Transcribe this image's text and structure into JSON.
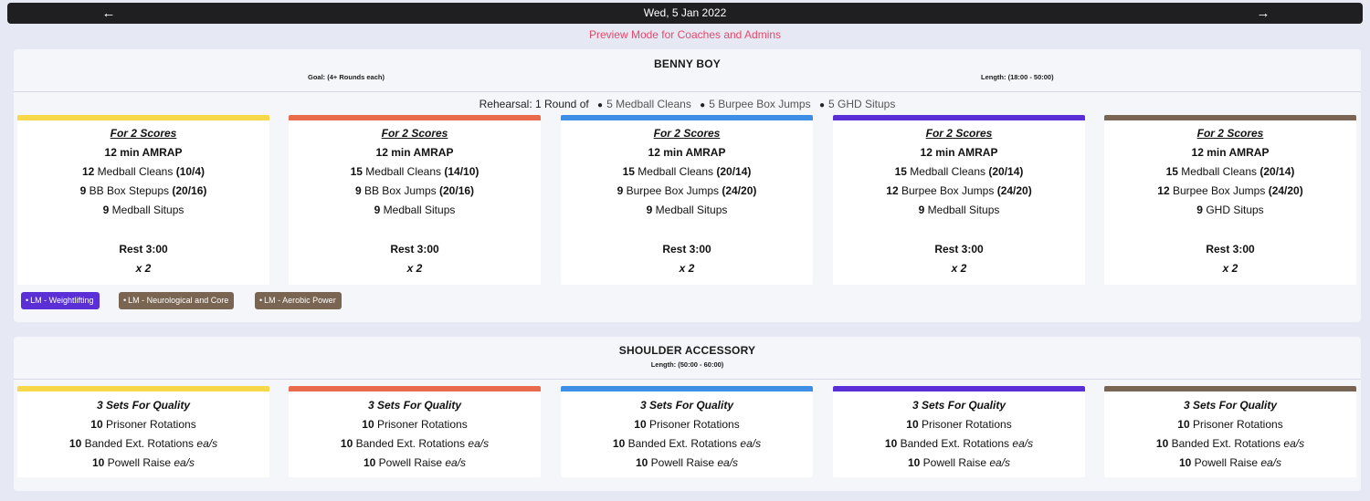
{
  "nav": {
    "date": "Wed, 5 Jan 2022",
    "prev_icon": "←",
    "next_icon": "→"
  },
  "preview_text": "Preview Mode for Coaches and Admins",
  "colors": {
    "yellow": "#f6d84a",
    "orange": "#ea6b4c",
    "blue": "#3f8ee6",
    "purple": "#5a2fd6",
    "brown": "#7a6553",
    "accent": "#e24a6b"
  },
  "workout1": {
    "title": "BENNY BOY",
    "goal": "Goal: (4+ Rounds each)",
    "length": "Length: (18:00 - 50:00)",
    "rehearsal": {
      "label": "Rehearsal: 1 Round of",
      "items": [
        "5 Medball Cleans",
        "5 Burpee Box Jumps",
        "5 GHD Situps"
      ]
    },
    "cards": [
      {
        "heading": "For 2 Scores",
        "amrap": "12 min AMRAP",
        "m1": {
          "n": "12",
          "name": "Medball Cleans",
          "w": "(10/4)"
        },
        "m2": {
          "n": "9",
          "name": "BB Box Stepups",
          "w": "(20/16)"
        },
        "m3": {
          "n": "9",
          "name": "Medball Situps"
        },
        "rest": "Rest 3:00",
        "reps": "x 2"
      },
      {
        "heading": "For 2 Scores",
        "amrap": "12 min AMRAP",
        "m1": {
          "n": "15",
          "name": "Medball Cleans",
          "w": "(14/10)"
        },
        "m2": {
          "n": "9",
          "name": "BB Box Jumps",
          "w": "(20/16)"
        },
        "m3": {
          "n": "9",
          "name": "Medball Situps"
        },
        "rest": "Rest 3:00",
        "reps": "x 2"
      },
      {
        "heading": "For 2 Scores",
        "amrap": "12 min AMRAP",
        "m1": {
          "n": "15",
          "name": "Medball Cleans",
          "w": "(20/14)"
        },
        "m2": {
          "n": "9",
          "name": "Burpee Box Jumps",
          "w": "(24/20)"
        },
        "m3": {
          "n": "9",
          "name": "Medball Situps"
        },
        "rest": "Rest 3:00",
        "reps": "x 2"
      },
      {
        "heading": "For 2 Scores",
        "amrap": "12 min AMRAP",
        "m1": {
          "n": "15",
          "name": "Medball Cleans",
          "w": "(20/14)"
        },
        "m2": {
          "n": "12",
          "name": "Burpee Box Jumps",
          "w": "(24/20)"
        },
        "m3": {
          "n": "9",
          "name": "Medball Situps"
        },
        "rest": "Rest 3:00",
        "reps": "x 2"
      },
      {
        "heading": "For 2 Scores",
        "amrap": "12 min AMRAP",
        "m1": {
          "n": "15",
          "name": "Medball Cleans",
          "w": "(20/14)"
        },
        "m2": {
          "n": "12",
          "name": "Burpee Box Jumps",
          "w": "(24/20)"
        },
        "m3": {
          "n": "9",
          "name": "GHD Situps"
        },
        "rest": "Rest 3:00",
        "reps": "x 2"
      }
    ],
    "tags": [
      {
        "label": "LM - Weightlifting",
        "color": "#5a2fd6"
      },
      {
        "label": "LM - Neurological and Core",
        "color": "#7a6553"
      },
      {
        "label": "LM - Aerobic Power",
        "color": "#7a6553"
      }
    ],
    "tag_bullet": "•"
  },
  "workout2": {
    "title": "SHOULDER ACCESSORY",
    "length": "Length: (50:00 - 60:00)",
    "heading": "3 Sets For Quality",
    "rows": [
      {
        "n": "10",
        "name": "Prisoner Rotations",
        "suffix": ""
      },
      {
        "n": "10",
        "name": "Banded Ext. Rotations",
        "suffix": "ea/s"
      },
      {
        "n": "10",
        "name": "Powell Raise",
        "suffix": "ea/s"
      }
    ]
  }
}
